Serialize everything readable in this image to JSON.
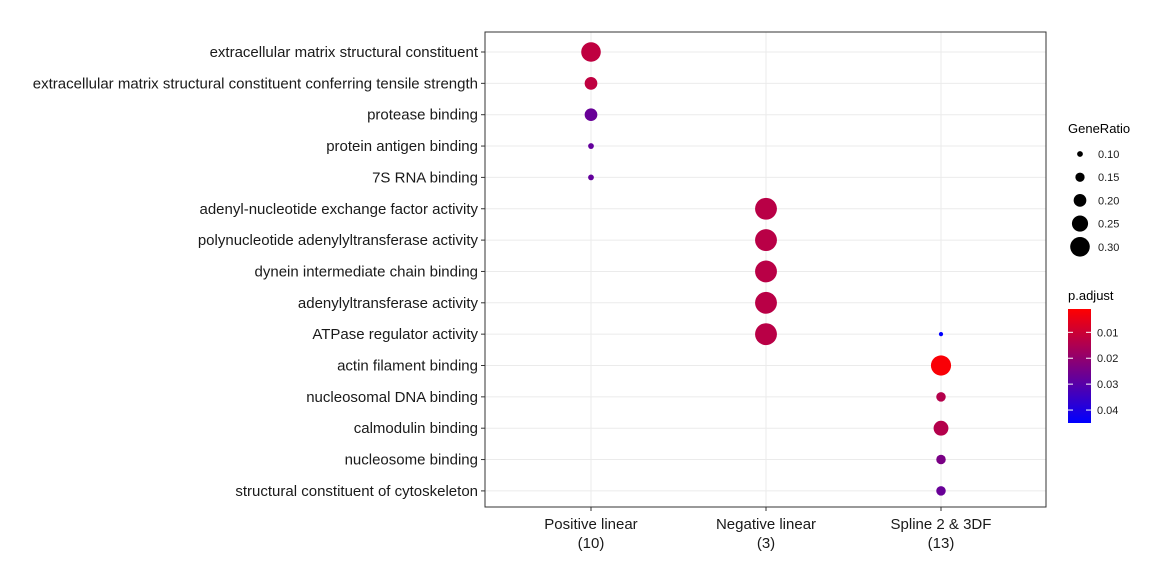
{
  "chart_data": {
    "type": "scatter",
    "title": "",
    "xlabel": "",
    "ylabel": "",
    "categories": [
      "extracellular matrix structural constituent",
      "extracellular matrix structural constituent conferring tensile strength",
      "protease binding",
      "protein antigen binding",
      "7S RNA binding",
      "adenyl-nucleotide exchange factor activity",
      "polynucleotide adenylyltransferase activity",
      "dynein intermediate chain binding",
      "adenylyltransferase activity",
      "ATPase regulator activity",
      "actin filament binding",
      "nucleosomal DNA binding",
      "calmodulin binding",
      "nucleosome binding",
      "structural constituent of cytoskeleton"
    ],
    "groups": [
      {
        "name": "Positive linear",
        "count": "(10)"
      },
      {
        "name": "Negative linear",
        "count": "(3)"
      },
      {
        "name": "Spline 2 & 3DF",
        "count": "(13)"
      }
    ],
    "points": [
      {
        "group": 0,
        "term": 0,
        "gene_ratio": 0.3,
        "p_adjust": 0.012
      },
      {
        "group": 0,
        "term": 1,
        "gene_ratio": 0.2,
        "p_adjust": 0.012
      },
      {
        "group": 0,
        "term": 2,
        "gene_ratio": 0.2,
        "p_adjust": 0.027
      },
      {
        "group": 0,
        "term": 3,
        "gene_ratio": 0.1,
        "p_adjust": 0.028
      },
      {
        "group": 0,
        "term": 4,
        "gene_ratio": 0.1,
        "p_adjust": 0.028
      },
      {
        "group": 1,
        "term": 5,
        "gene_ratio": 0.333,
        "p_adjust": 0.013
      },
      {
        "group": 1,
        "term": 6,
        "gene_ratio": 0.333,
        "p_adjust": 0.013
      },
      {
        "group": 1,
        "term": 7,
        "gene_ratio": 0.333,
        "p_adjust": 0.013
      },
      {
        "group": 1,
        "term": 8,
        "gene_ratio": 0.333,
        "p_adjust": 0.013
      },
      {
        "group": 1,
        "term": 9,
        "gene_ratio": 0.333,
        "p_adjust": 0.013
      },
      {
        "group": 2,
        "term": 9,
        "gene_ratio": 0.077,
        "p_adjust": 0.045
      },
      {
        "group": 2,
        "term": 10,
        "gene_ratio": 0.308,
        "p_adjust": 0.002
      },
      {
        "group": 2,
        "term": 11,
        "gene_ratio": 0.154,
        "p_adjust": 0.014
      },
      {
        "group": 2,
        "term": 12,
        "gene_ratio": 0.231,
        "p_adjust": 0.014
      },
      {
        "group": 2,
        "term": 13,
        "gene_ratio": 0.154,
        "p_adjust": 0.024
      },
      {
        "group": 2,
        "term": 14,
        "gene_ratio": 0.154,
        "p_adjust": 0.027
      }
    ],
    "legend_size": {
      "title": "GeneRatio",
      "values": [
        0.1,
        0.15,
        0.2,
        0.25,
        0.3
      ],
      "labels": [
        "0.10",
        "0.15",
        "0.20",
        "0.25",
        "0.30"
      ]
    },
    "legend_color": {
      "title": "p.adjust",
      "range": [
        0.001,
        0.045
      ],
      "ticks": [
        0.01,
        0.02,
        0.03,
        0.04
      ],
      "labels": [
        "0.01",
        "0.02",
        "0.03",
        "0.04"
      ],
      "low_color": "#ff0000",
      "high_color": "#0000ff"
    },
    "grid": true,
    "legend_position": "right"
  }
}
